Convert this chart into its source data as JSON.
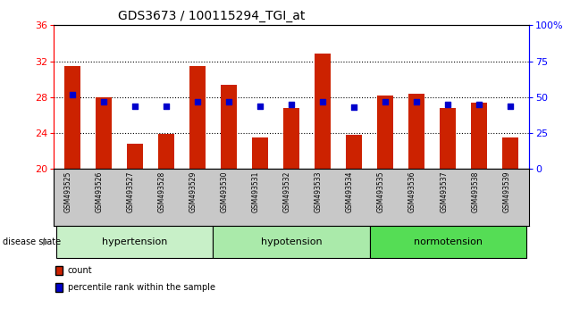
{
  "title": "GDS3673 / 100115294_TGI_at",
  "samples": [
    "GSM493525",
    "GSM493526",
    "GSM493527",
    "GSM493528",
    "GSM493529",
    "GSM493530",
    "GSM493531",
    "GSM493532",
    "GSM493533",
    "GSM493534",
    "GSM493535",
    "GSM493536",
    "GSM493537",
    "GSM493538",
    "GSM493539"
  ],
  "counts": [
    31.5,
    28.0,
    22.8,
    23.9,
    31.5,
    29.4,
    23.5,
    26.8,
    32.9,
    23.8,
    28.2,
    28.4,
    26.8,
    27.4,
    23.5
  ],
  "percentiles": [
    52,
    47,
    44,
    44,
    47,
    47,
    44,
    45,
    47,
    43,
    47,
    47,
    45,
    45,
    44
  ],
  "ylim_left": [
    20,
    36
  ],
  "ylim_right": [
    0,
    100
  ],
  "yticks_left": [
    20,
    24,
    28,
    32,
    36
  ],
  "yticks_right": [
    0,
    25,
    50,
    75,
    100
  ],
  "bar_color": "#CC2200",
  "dot_color": "#0000CC",
  "bar_width": 0.5,
  "xticklabel_bg": "#C8C8C8",
  "group_defs": [
    {
      "label": "hypertension",
      "start": 0,
      "end": 5
    },
    {
      "label": "hypotension",
      "start": 5,
      "end": 10
    },
    {
      "label": "normotension",
      "start": 10,
      "end": 15
    }
  ],
  "group_colors": [
    "#C8F0C8",
    "#AAEAAA",
    "#55DD55"
  ],
  "legend_items": [
    {
      "color": "#CC2200",
      "label": "count"
    },
    {
      "color": "#0000CC",
      "label": "percentile rank within the sample"
    }
  ],
  "title_fontsize": 10,
  "axis_tick_fontsize": 8,
  "sample_label_fontsize": 5.5,
  "group_label_fontsize": 8,
  "legend_fontsize": 7,
  "disease_state_fontsize": 7
}
